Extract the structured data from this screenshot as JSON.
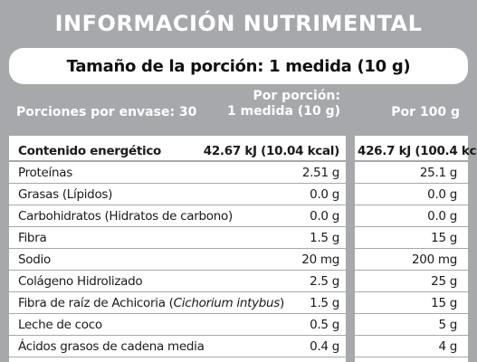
{
  "title": "INFORMACIÓN NUTRIMENTAL",
  "serving": "Tamaño de la porción: 1 medida (10 g)",
  "headers": {
    "portions": "Porciones por envase: 30",
    "per_portion_line1": "Por porción:",
    "per_portion_line2": "1 medida (10 g)",
    "per_100": "Por 100 g"
  },
  "rows": [
    {
      "name": "Contenido energético",
      "per_portion": "42.67 kJ (10.04 kcal)",
      "per_100": "426.7 kJ (100.4 kcal)"
    },
    {
      "name": "Proteínas",
      "per_portion": "2.51 g",
      "per_100": "25.1 g"
    },
    {
      "name": "Grasas (Lípidos)",
      "per_portion": "0.0 g",
      "per_100": "0.0 g"
    },
    {
      "name": "Carbohidratos (Hidratos de carbono)",
      "per_portion": "0.0 g",
      "per_100": "0.0 g"
    },
    {
      "name": "Fibra",
      "per_portion": "1.5 g",
      "per_100": "15 g"
    },
    {
      "name": "Sodio",
      "per_portion": "20 mg",
      "per_100": "200 mg"
    },
    {
      "name": "Colágeno Hidrolizado",
      "per_portion": "2.5 g",
      "per_100": "25 g"
    },
    {
      "name_prefix": "Fibra de raíz de Achicoria (",
      "name_italic": "Cichorium intybus",
      "name_suffix": ")",
      "per_portion": "1.5 g",
      "per_100": "15 g"
    },
    {
      "name": "Leche de coco",
      "per_portion": "0.5 g",
      "per_100": "5 g"
    },
    {
      "name": "Ácidos grasos de cadena media",
      "per_portion": "0.4 g",
      "per_100": "4 g"
    }
  ],
  "colors": {
    "panel_gray": "#a6a8ab",
    "text": "#1a1a1a",
    "white": "#ffffff"
  }
}
